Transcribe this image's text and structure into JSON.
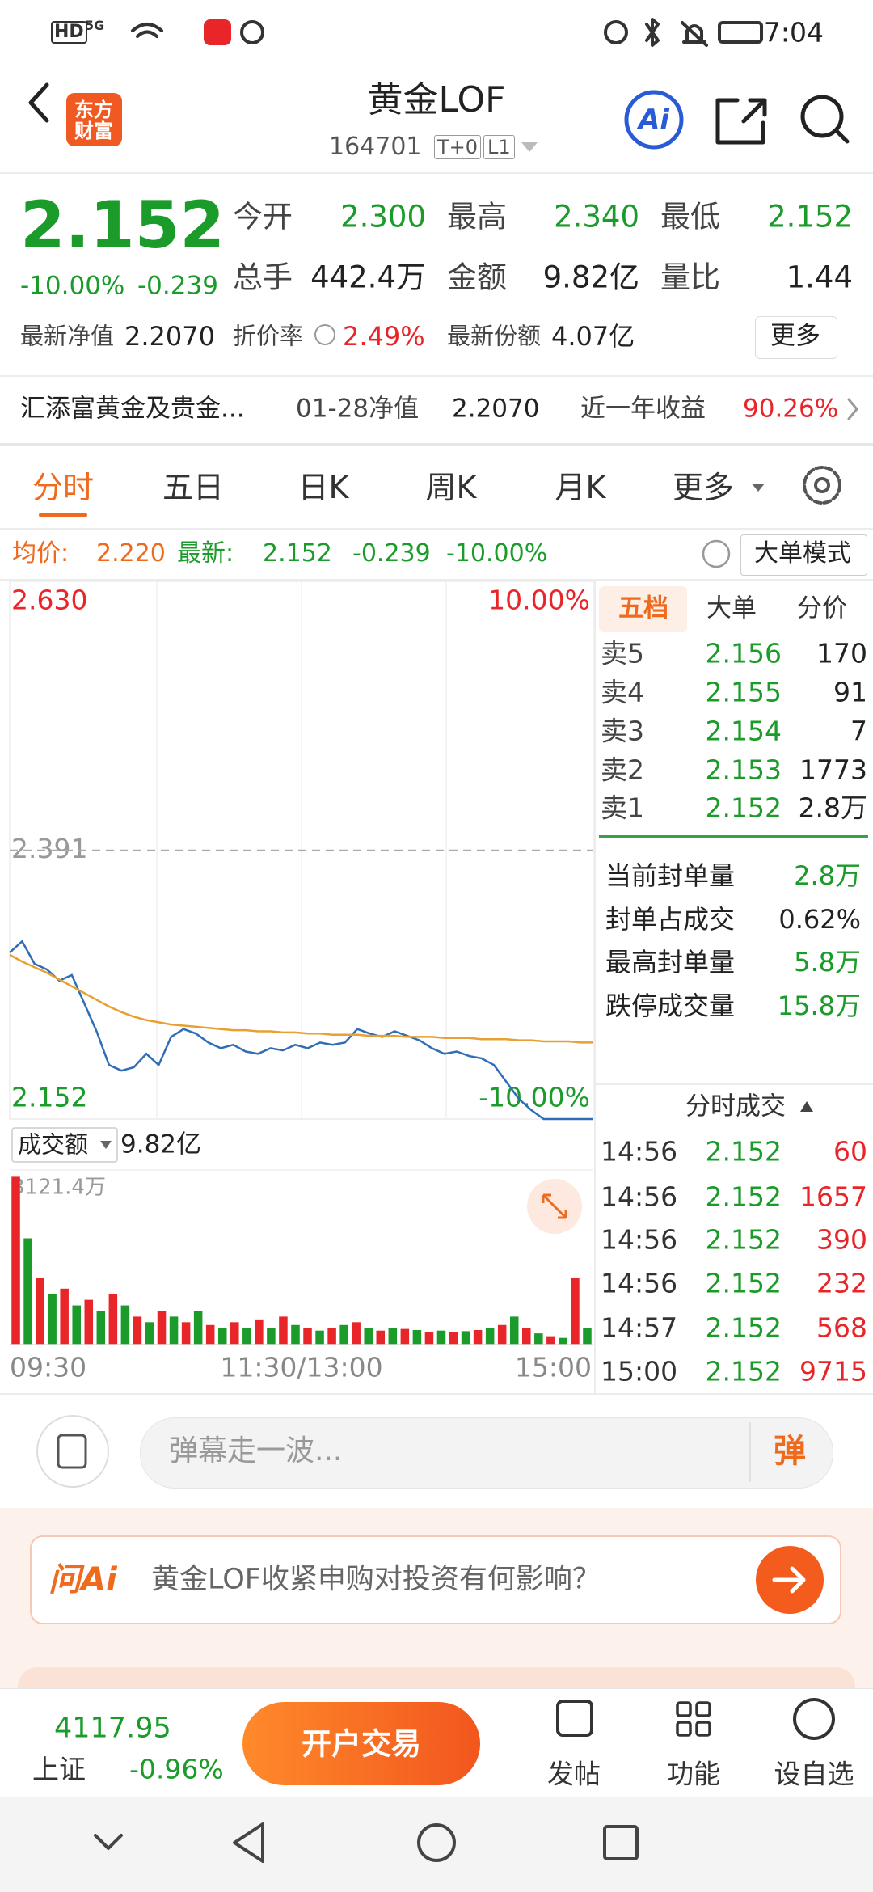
{
  "status": {
    "badges": [
      "HD",
      "5G"
    ],
    "time": "7:04"
  },
  "header": {
    "logo": [
      "东方",
      "财富"
    ],
    "title": "黄金LOF",
    "code": "164701",
    "tags": [
      "T+0",
      "L1"
    ],
    "ai": "Ai"
  },
  "quote": {
    "price": "2.152",
    "change_pct": "-10.00%",
    "change": "-0.239",
    "fields": [
      {
        "label": "今开",
        "value": "2.300"
      },
      {
        "label": "最高",
        "value": "2.340"
      },
      {
        "label": "最低",
        "value": "2.152"
      },
      {
        "label": "总手",
        "value": "442.4万"
      },
      {
        "label": "金额",
        "value": "9.82亿"
      },
      {
        "label": "量比",
        "value": "1.44"
      }
    ],
    "nav": {
      "label": "最新净值",
      "value": "2.2070"
    },
    "discount": {
      "label": "折价率",
      "value": "2.49%"
    },
    "shares": {
      "label": "最新份额",
      "value": "4.07亿"
    },
    "more": "更多"
  },
  "fund": {
    "name": "汇添富黄金及贵金...",
    "nav_label": "01-28净值",
    "nav": "2.2070",
    "return_label": "近一年收益",
    "return": "90.26%"
  },
  "tabs": [
    "分时",
    "五日",
    "日K",
    "周K",
    "月K",
    "更多"
  ],
  "summary": {
    "avg_label": "均价:",
    "avg": "2.220",
    "last_label": "最新:",
    "last": "2.152",
    "change": "-0.239",
    "change_pct": "-10.00%",
    "mode": "大单模式"
  },
  "chart_data": {
    "type": "line",
    "ylim": [
      2.152,
      2.63
    ],
    "yticks": [
      {
        "value": 2.152,
        "label": "2.152"
      },
      {
        "value": 2.391,
        "label": "2.391"
      },
      {
        "value": 2.63,
        "label": "2.630"
      }
    ],
    "pct_labels": [
      "10.00%",
      "-10.00%"
    ],
    "x_labels": [
      "09:30",
      "11:30/13:00",
      "15:00"
    ],
    "series": [
      {
        "color": "#2f6db5",
        "values": [
          2.3,
          2.31,
          2.29,
          2.285,
          2.275,
          2.28,
          2.255,
          2.23,
          2.2,
          2.195,
          2.198,
          2.21,
          2.2,
          2.225,
          2.232,
          2.228,
          2.22,
          2.215,
          2.218,
          2.212,
          2.21,
          2.215,
          2.213,
          2.218,
          2.215,
          2.22,
          2.218,
          2.22,
          2.232,
          2.228,
          2.225,
          2.23,
          2.226,
          2.222,
          2.215,
          2.21,
          2.212,
          2.208,
          2.206,
          2.2,
          2.185,
          2.17,
          2.16,
          2.152,
          2.152,
          2.152,
          2.152,
          2.152
        ]
      },
      {
        "color": "#e8a030",
        "values": [
          2.298,
          2.292,
          2.287,
          2.282,
          2.276,
          2.27,
          2.264,
          2.258,
          2.252,
          2.247,
          2.243,
          2.24,
          2.238,
          2.236,
          2.235,
          2.234,
          2.233,
          2.232,
          2.231,
          2.231,
          2.23,
          2.23,
          2.229,
          2.229,
          2.228,
          2.228,
          2.227,
          2.227,
          2.227,
          2.226,
          2.226,
          2.226,
          2.225,
          2.225,
          2.225,
          2.224,
          2.224,
          2.224,
          2.223,
          2.223,
          2.223,
          2.222,
          2.222,
          2.221,
          2.221,
          2.221,
          2.22,
          2.22
        ]
      }
    ]
  },
  "volume": {
    "type": "bar",
    "label": "成交额",
    "total": "9.82亿",
    "ylim": [
      0,
      3121.4
    ],
    "yticks": [
      {
        "value": 3121.4,
        "label": "3121.4万"
      }
    ],
    "colors": [
      "#e8262a",
      "#1a9b2a"
    ],
    "values": [
      3000,
      1900,
      1200,
      900,
      1000,
      700,
      800,
      600,
      900,
      700,
      500,
      400,
      600,
      500,
      400,
      600,
      350,
      300,
      400,
      300,
      450,
      300,
      500,
      350,
      300,
      250,
      300,
      350,
      400,
      300,
      250,
      300,
      280,
      260,
      230,
      250,
      220,
      240,
      260,
      300,
      350,
      500,
      300,
      200,
      150,
      120,
      1200,
      300
    ]
  },
  "order_book": {
    "tabs": [
      "五档",
      "大单",
      "分价"
    ],
    "asks": [
      {
        "label": "卖5",
        "price": "2.156",
        "qty": "170"
      },
      {
        "label": "卖4",
        "price": "2.155",
        "qty": "91"
      },
      {
        "label": "卖3",
        "price": "2.154",
        "qty": "7"
      },
      {
        "label": "卖2",
        "price": "2.153",
        "qty": "1773"
      },
      {
        "label": "卖1",
        "price": "2.152",
        "qty": "2.8万"
      }
    ],
    "stats": [
      {
        "label": "当前封单量",
        "value": "2.8万"
      },
      {
        "label": "封单占成交",
        "value": "0.62%"
      },
      {
        "label": "最高封单量",
        "value": "5.8万"
      },
      {
        "label": "跌停成交量",
        "value": "15.8万"
      }
    ]
  },
  "trades": {
    "title": "分时成交",
    "rows": [
      {
        "time": "14:56",
        "price": "2.152",
        "qty": "60"
      },
      {
        "time": "14:56",
        "price": "2.152",
        "qty": "1657"
      },
      {
        "time": "14:56",
        "price": "2.152",
        "qty": "390"
      },
      {
        "time": "14:56",
        "price": "2.152",
        "qty": "232"
      },
      {
        "time": "14:57",
        "price": "2.152",
        "qty": "568"
      },
      {
        "time": "15:00",
        "price": "2.152",
        "qty": "9715"
      }
    ]
  },
  "comment": {
    "placeholder": "弹幕走一波...",
    "button": "弹"
  },
  "ai": {
    "brand": "问Ai",
    "question": "黄金LOF收紧申购对投资有何影响？"
  },
  "bottom": {
    "index_value": "4117.95",
    "index_name": "上证",
    "index_change": "-0.96%",
    "trade": "开户交易",
    "actions": [
      "发帖",
      "功能",
      "设自选"
    ]
  }
}
